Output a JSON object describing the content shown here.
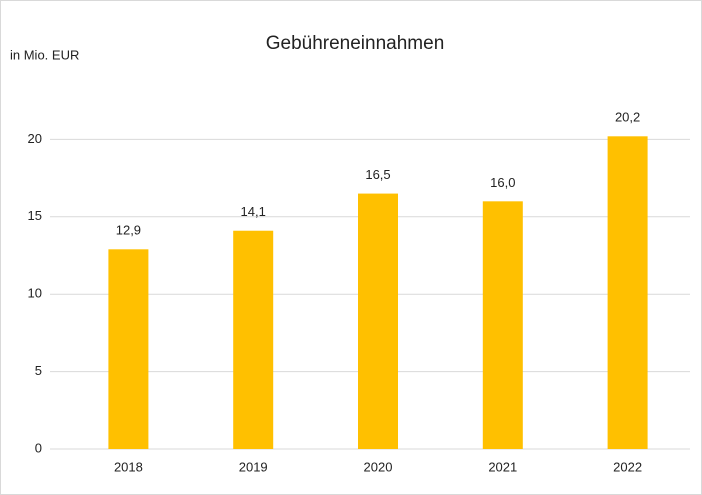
{
  "chart_data": {
    "type": "bar",
    "title": "Gebühreneinnahmen",
    "y_label": "in Mio. EUR",
    "categories": [
      "2018",
      "2019",
      "2020",
      "2021",
      "2022"
    ],
    "values": [
      12.9,
      14.1,
      16.5,
      16.0,
      20.2
    ],
    "value_labels": [
      "12,9",
      "14,1",
      "16,5",
      "16,0",
      "20,2"
    ],
    "color": "#ffc000",
    "ylim": [
      0,
      25
    ],
    "yticks": [
      0,
      5,
      10,
      15,
      20
    ],
    "grid": true
  }
}
